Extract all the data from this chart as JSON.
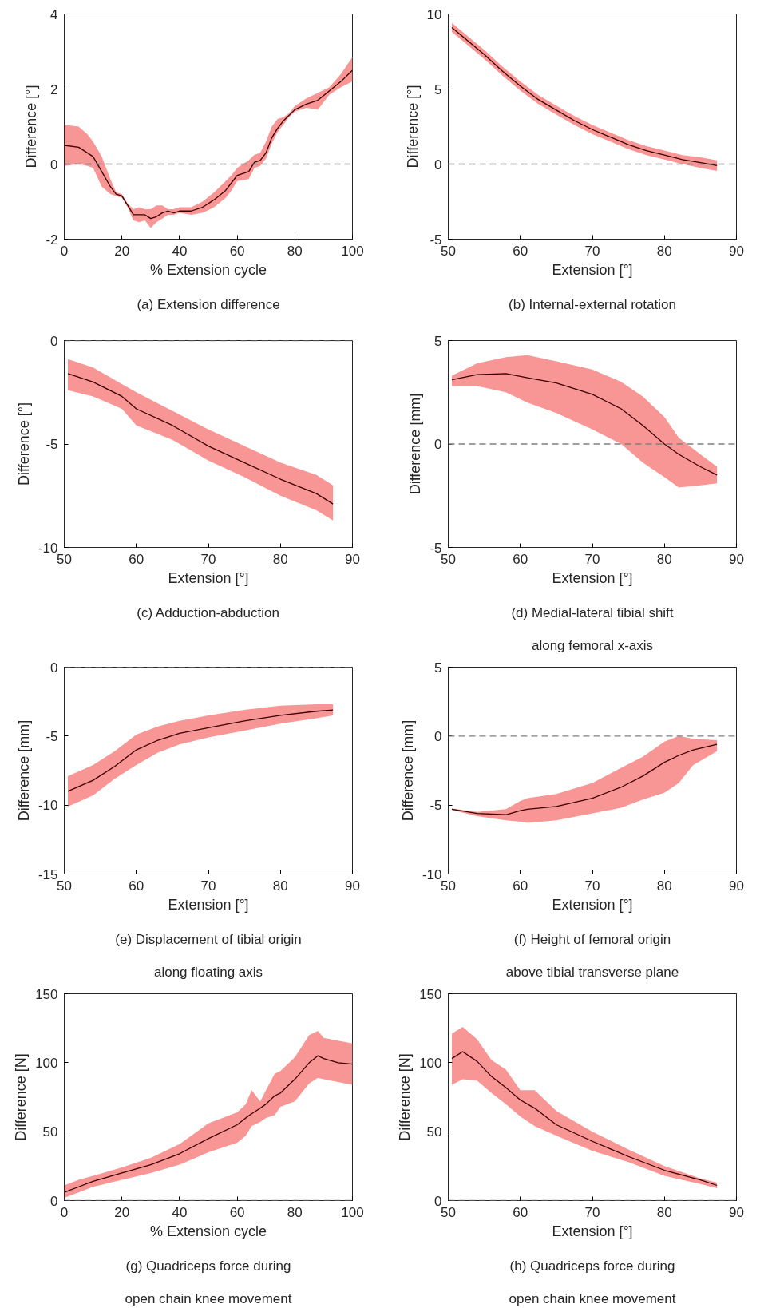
{
  "chart_data": [
    {
      "type": "line",
      "title": "(a) Extension difference",
      "xlabel": "% Extension cycle",
      "ylabel": "Difference [°]",
      "xlim": [
        0,
        100
      ],
      "ylim": [
        -2,
        4
      ],
      "xticks": [
        0,
        20,
        40,
        60,
        80,
        100
      ],
      "yticks": [
        -2,
        0,
        2,
        4
      ],
      "grid": false,
      "x": [
        0,
        5,
        8,
        10,
        13,
        16,
        18,
        20,
        22,
        24,
        26,
        28,
        30,
        32,
        34,
        36,
        38,
        40,
        44,
        48,
        52,
        56,
        58,
        60,
        64,
        66,
        68,
        70,
        72,
        74,
        76,
        78,
        80,
        84,
        88,
        92,
        96,
        100
      ],
      "series": [
        {
          "color": "#3a0000",
          "values": [
            0.5,
            0.45,
            0.3,
            0.2,
            -0.2,
            -0.6,
            -0.8,
            -0.85,
            -1.1,
            -1.35,
            -1.35,
            -1.35,
            -1.45,
            -1.4,
            -1.3,
            -1.25,
            -1.3,
            -1.25,
            -1.25,
            -1.15,
            -0.95,
            -0.7,
            -0.5,
            -0.3,
            -0.2,
            0.05,
            0.1,
            0.3,
            0.7,
            0.95,
            1.15,
            1.3,
            1.45,
            1.6,
            1.7,
            1.95,
            2.2,
            2.5
          ],
          "lower": [
            -0.05,
            0.0,
            -0.05,
            -0.1,
            -0.6,
            -0.8,
            -0.85,
            -0.9,
            -1.15,
            -1.5,
            -1.55,
            -1.5,
            -1.7,
            -1.55,
            -1.45,
            -1.35,
            -1.35,
            -1.3,
            -1.35,
            -1.3,
            -1.15,
            -0.9,
            -0.7,
            -0.45,
            -0.4,
            -0.1,
            -0.05,
            0.15,
            0.55,
            0.85,
            1.05,
            1.25,
            1.4,
            1.5,
            1.45,
            1.85,
            2.05,
            2.2
          ],
          "upper": [
            1.05,
            1.0,
            0.8,
            0.6,
            0.2,
            -0.4,
            -0.75,
            -0.8,
            -1.05,
            -1.2,
            -1.15,
            -1.2,
            -1.2,
            -1.1,
            -1.1,
            -1.2,
            -1.2,
            -1.15,
            -1.15,
            -1.0,
            -0.75,
            -0.45,
            -0.3,
            -0.1,
            0.1,
            0.25,
            0.3,
            0.6,
            1.0,
            1.2,
            1.25,
            1.35,
            1.55,
            1.75,
            1.9,
            2.05,
            2.4,
            2.85
          ]
        }
      ],
      "ref_lines": [
        {
          "axis": "y",
          "value": 0,
          "color": "#808080",
          "line_style": "dashed"
        }
      ]
    },
    {
      "type": "line",
      "title": "(b) Internal-external rotation",
      "xlabel": "Extension [°]",
      "ylabel": "Difference [°]",
      "xlim": [
        50,
        90
      ],
      "ylim": [
        -5,
        10
      ],
      "xticks": [
        50,
        60,
        70,
        80,
        90
      ],
      "yticks": [
        -5,
        0,
        5,
        10
      ],
      "grid": false,
      "x": [
        50.5,
        52.5,
        55,
        57.5,
        60,
        62.5,
        65,
        67.5,
        70,
        72.5,
        75,
        77.5,
        80,
        82.5,
        85,
        87.3
      ],
      "series": [
        {
          "color": "#3a0000",
          "values": [
            9.1,
            8.3,
            7.3,
            6.2,
            5.2,
            4.3,
            3.6,
            2.9,
            2.3,
            1.8,
            1.3,
            0.9,
            0.6,
            0.3,
            0.1,
            -0.1
          ],
          "lower": [
            8.8,
            8.0,
            7.0,
            5.9,
            4.9,
            4.0,
            3.3,
            2.6,
            2.0,
            1.5,
            1.0,
            0.6,
            0.3,
            0.0,
            -0.25,
            -0.45
          ],
          "upper": [
            9.4,
            8.6,
            7.6,
            6.5,
            5.5,
            4.6,
            3.9,
            3.2,
            2.6,
            2.1,
            1.6,
            1.2,
            0.9,
            0.6,
            0.45,
            0.25
          ]
        }
      ],
      "ref_lines": [
        {
          "axis": "y",
          "value": 0,
          "color": "#808080",
          "line_style": "dashed"
        }
      ]
    },
    {
      "type": "line",
      "title": "(c) Adduction-abduction",
      "xlabel": "Extension [°]",
      "ylabel": "Difference [°]",
      "xlim": [
        50,
        90
      ],
      "ylim": [
        -10,
        0
      ],
      "xticks": [
        50,
        60,
        70,
        80,
        90
      ],
      "yticks": [
        -10,
        -5,
        0
      ],
      "grid": false,
      "x": [
        50.5,
        54,
        58,
        60,
        65,
        70,
        75,
        80,
        85,
        87.3
      ],
      "series": [
        {
          "color": "#3a0000",
          "values": [
            -1.6,
            -2.0,
            -2.7,
            -3.3,
            -4.1,
            -5.1,
            -5.9,
            -6.7,
            -7.4,
            -7.9
          ],
          "lower": [
            -2.4,
            -2.7,
            -3.3,
            -4.1,
            -4.8,
            -5.8,
            -6.6,
            -7.5,
            -8.2,
            -8.7
          ],
          "upper": [
            -0.9,
            -1.3,
            -2.1,
            -2.5,
            -3.4,
            -4.3,
            -5.1,
            -5.9,
            -6.5,
            -7.0
          ]
        }
      ],
      "ref_lines": [
        {
          "axis": "y",
          "value": 0,
          "color": "#808080",
          "line_style": "dashed"
        }
      ]
    },
    {
      "type": "line",
      "title": "(d) Medial-lateral tibial shift\nalong femoral x-axis",
      "xlabel": "Extension [°]",
      "ylabel": "Difference [mm]",
      "xlim": [
        50,
        90
      ],
      "ylim": [
        -5,
        5
      ],
      "xticks": [
        50,
        60,
        70,
        80,
        90
      ],
      "yticks": [
        -5,
        0,
        5
      ],
      "grid": false,
      "x": [
        50.5,
        54,
        58,
        61,
        65,
        70,
        74,
        77,
        80,
        82,
        85,
        87.3
      ],
      "series": [
        {
          "color": "#3a0000",
          "values": [
            3.1,
            3.35,
            3.4,
            3.2,
            2.95,
            2.4,
            1.7,
            0.9,
            0.0,
            -0.5,
            -1.1,
            -1.5
          ],
          "lower": [
            2.8,
            2.8,
            2.5,
            2.0,
            1.5,
            0.7,
            0.0,
            -0.9,
            -1.6,
            -2.1,
            -2.0,
            -1.9
          ],
          "upper": [
            3.3,
            3.9,
            4.2,
            4.3,
            4.0,
            3.6,
            3.0,
            2.3,
            1.3,
            0.3,
            -0.5,
            -1.1
          ]
        }
      ],
      "ref_lines": [
        {
          "axis": "y",
          "value": 0,
          "color": "#808080",
          "line_style": "dashed"
        }
      ]
    },
    {
      "type": "line",
      "title": "(e) Displacement of tibial origin\nalong floating axis",
      "xlabel": "Extension [°]",
      "ylabel": "Difference [mm]",
      "xlim": [
        50,
        90
      ],
      "ylim": [
        -15,
        0
      ],
      "xticks": [
        50,
        60,
        70,
        80,
        90
      ],
      "yticks": [
        -15,
        -10,
        -5,
        0
      ],
      "grid": false,
      "x": [
        50.5,
        54,
        57,
        60,
        63,
        66,
        70,
        75,
        80,
        85,
        87.3
      ],
      "series": [
        {
          "color": "#3a0000",
          "values": [
            -9.0,
            -8.2,
            -7.2,
            -6.0,
            -5.3,
            -4.8,
            -4.4,
            -3.9,
            -3.5,
            -3.2,
            -3.1
          ],
          "lower": [
            -10.1,
            -9.3,
            -8.1,
            -7.1,
            -6.2,
            -5.6,
            -5.1,
            -4.6,
            -4.1,
            -3.7,
            -3.5
          ],
          "upper": [
            -7.9,
            -7.1,
            -6.1,
            -4.9,
            -4.3,
            -3.9,
            -3.5,
            -3.1,
            -2.8,
            -2.7,
            -2.7
          ]
        }
      ],
      "ref_lines": [
        {
          "axis": "y",
          "value": 0,
          "color": "#808080",
          "line_style": "dashed"
        }
      ]
    },
    {
      "type": "line",
      "title": "(f) Height of femoral origin\nabove tibial transverse plane",
      "xlabel": "Extension [°]",
      "ylabel": "Difference [mm]",
      "xlim": [
        50,
        90
      ],
      "ylim": [
        -10,
        5
      ],
      "xticks": [
        50,
        60,
        70,
        80,
        90
      ],
      "yticks": [
        -10,
        -5,
        0,
        5
      ],
      "grid": false,
      "x": [
        50.5,
        54,
        58,
        60,
        61,
        65,
        70,
        74,
        77,
        80,
        82,
        84,
        87.3
      ],
      "series": [
        {
          "color": "#3a0000",
          "values": [
            -5.3,
            -5.6,
            -5.7,
            -5.4,
            -5.3,
            -5.1,
            -4.5,
            -3.7,
            -2.9,
            -1.9,
            -1.4,
            -1.0,
            -0.6
          ],
          "lower": [
            -5.35,
            -5.8,
            -6.1,
            -6.2,
            -6.3,
            -6.1,
            -5.6,
            -5.2,
            -4.6,
            -4.1,
            -3.4,
            -2.1,
            -1.1
          ],
          "upper": [
            -5.25,
            -5.5,
            -5.3,
            -4.7,
            -4.5,
            -4.2,
            -3.4,
            -2.3,
            -1.5,
            -0.4,
            0.0,
            -0.2,
            -0.3
          ]
        }
      ],
      "ref_lines": [
        {
          "axis": "y",
          "value": 0,
          "color": "#808080",
          "line_style": "dashed"
        }
      ]
    },
    {
      "type": "line",
      "title": "(g) Quadriceps force during\nopen chain knee movement",
      "xlabel": "% Extension cycle",
      "ylabel": "Difference [N]",
      "xlim": [
        0,
        100
      ],
      "ylim": [
        0,
        150
      ],
      "xticks": [
        0,
        20,
        40,
        60,
        80,
        100
      ],
      "yticks": [
        0,
        50,
        100,
        150
      ],
      "grid": false,
      "x": [
        0,
        5,
        10,
        20,
        30,
        40,
        50,
        60,
        63,
        65,
        68,
        70,
        73,
        75,
        80,
        85,
        88,
        90,
        95,
        100
      ],
      "series": [
        {
          "color": "#3a0000",
          "values": [
            6,
            10,
            14,
            20,
            26,
            34,
            45,
            55,
            60,
            63,
            67,
            70,
            76,
            78,
            88,
            100,
            105,
            103,
            100,
            99
          ],
          "lower": [
            2,
            6,
            10,
            15,
            20,
            26,
            35,
            42,
            47,
            54,
            57,
            60,
            62,
            68,
            72,
            85,
            89,
            88,
            86,
            84
          ],
          "upper": [
            11,
            15,
            18,
            24,
            31,
            41,
            56,
            64,
            70,
            80,
            72,
            80,
            92,
            94,
            104,
            120,
            123,
            118,
            116,
            114
          ]
        }
      ],
      "ref_lines": [
        {
          "axis": "y",
          "value": 0,
          "color": "#808080",
          "line_style": "dashed"
        }
      ]
    },
    {
      "type": "line",
      "title": "(h) Quadriceps force during\nopen chain knee movement",
      "xlabel": "Extension [°]",
      "ylabel": "Difference [N]",
      "xlim": [
        50,
        90
      ],
      "ylim": [
        0,
        150
      ],
      "xticks": [
        50,
        60,
        70,
        80,
        90
      ],
      "yticks": [
        0,
        50,
        100,
        150
      ],
      "grid": false,
      "x": [
        50.5,
        52,
        54,
        56,
        58,
        60,
        62,
        65,
        70,
        75,
        80,
        85,
        87.3
      ],
      "series": [
        {
          "color": "#3a0000",
          "values": [
            103,
            108,
            101,
            90,
            82,
            73,
            67,
            55,
            43,
            32,
            22,
            15,
            11
          ],
          "lower": [
            84,
            88,
            87,
            78,
            70,
            61,
            54,
            47,
            36,
            28,
            18,
            12,
            9
          ],
          "upper": [
            121,
            126,
            117,
            102,
            95,
            80,
            80,
            65,
            50,
            37,
            25,
            16,
            13
          ]
        }
      ],
      "ref_lines": [
        {
          "axis": "y",
          "value": 0,
          "color": "#808080",
          "line_style": "dashed"
        }
      ]
    }
  ]
}
